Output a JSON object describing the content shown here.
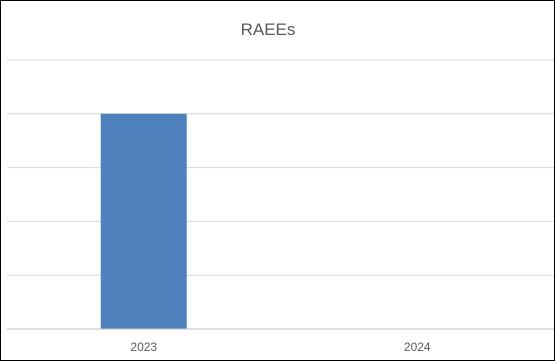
{
  "chart_data": {
    "type": "bar",
    "title": "RAEEs",
    "categories": [
      "2023",
      "2024"
    ],
    "series": [
      {
        "values": [
          4,
          0
        ]
      }
    ],
    "ylim": [
      0,
      5
    ],
    "grid": true,
    "legend": "none",
    "bar_color": "#4F81BD",
    "grid_color": "#D9D9D9",
    "axis_color": "#BFBFBF",
    "text_color": "#595959"
  }
}
